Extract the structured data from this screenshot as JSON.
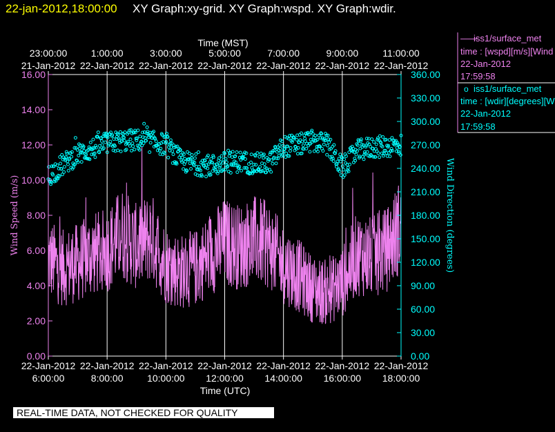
{
  "header": {
    "timestamp": "22-jan-2012,18:00:00",
    "graphs": "XY Graph:xy-grid.  XY Graph:wspd.  XY Graph:wdir."
  },
  "footer": {
    "notice": "REAL-TIME DATA, NOT CHECKED FOR QUALITY"
  },
  "legend": {
    "entries": [
      {
        "marker": "——",
        "name": "iss1/surface_met",
        "var": "time : [wspd][m/s][Wind",
        "date": "22-Jan-2012",
        "time": "17:59:58",
        "color": "#ee82ee"
      },
      {
        "marker": "o",
        "name": "iss1/surface_met",
        "var": "time : [wdir][degrees][W",
        "date": "22-Jan-2012",
        "time": "17:59:58",
        "color": "#00ffff"
      }
    ]
  },
  "colors": {
    "wspd": "#ee82ee",
    "wdir": "#00ffff",
    "axis_left": "#ee82ee",
    "axis_right": "#00ffff",
    "grid": "#ffffff",
    "text": "#ffffff",
    "header": "#ffff00"
  },
  "chart_data": {
    "type": "line",
    "title_top_axis": "Time (MST)",
    "title_bottom_axis": "Time (UTC)",
    "ylabel_left": "Wind Speed (m/s)",
    "ylabel_right": "Wind Direction (degrees)",
    "xlim_utc_hours": [
      6,
      18
    ],
    "ylim_left": [
      0,
      16
    ],
    "ylim_right": [
      0,
      360
    ],
    "bottom_ticks": [
      {
        "x": 6,
        "date": "22-Jan-2012",
        "time": "6:00:00"
      },
      {
        "x": 8,
        "date": "22-Jan-2012",
        "time": "8:00:00"
      },
      {
        "x": 10,
        "date": "22-Jan-2012",
        "time": "10:00:00"
      },
      {
        "x": 12,
        "date": "22-Jan-2012",
        "time": "12:00:00"
      },
      {
        "x": 14,
        "date": "22-Jan-2012",
        "time": "14:00:00"
      },
      {
        "x": 16,
        "date": "22-Jan-2012",
        "time": "16:00:00"
      },
      {
        "x": 18,
        "date": "22-Jan-2012",
        "time": "18:00:00"
      }
    ],
    "top_ticks": [
      {
        "x": 6,
        "time": "23:00:00",
        "date": "21-Jan-2012"
      },
      {
        "x": 8,
        "time": "1:00:00",
        "date": "22-Jan-2012"
      },
      {
        "x": 10,
        "time": "3:00:00",
        "date": "22-Jan-2012"
      },
      {
        "x": 12,
        "time": "5:00:00",
        "date": "22-Jan-2012"
      },
      {
        "x": 14,
        "time": "7:00:00",
        "date": "22-Jan-2012"
      },
      {
        "x": 16,
        "time": "9:00:00",
        "date": "22-Jan-2012"
      },
      {
        "x": 18,
        "time": "11:00:00",
        "date": "22-Jan-2012"
      }
    ],
    "left_ticks": [
      "0.00",
      "2.00",
      "4.00",
      "6.00",
      "8.00",
      "10.00",
      "12.00",
      "14.00",
      "16.00"
    ],
    "right_ticks": [
      "0.00",
      "30.00",
      "60.00",
      "90.00",
      "120.00",
      "150.00",
      "180.00",
      "210.00",
      "240.00",
      "270.00",
      "300.00",
      "330.00",
      "360.00"
    ],
    "grid": "vertical",
    "series": [
      {
        "name": "iss1/surface_met",
        "axis": "left",
        "style": "line",
        "x": [
          6.0,
          6.5,
          7.0,
          7.5,
          8.0,
          8.5,
          9.0,
          9.5,
          10.0,
          10.5,
          11.0,
          11.5,
          12.0,
          12.5,
          13.0,
          13.5,
          14.0,
          14.5,
          15.0,
          15.5,
          16.0,
          16.5,
          17.0,
          17.5,
          18.0
        ],
        "y": [
          5.5,
          5.0,
          5.3,
          5.8,
          6.0,
          7.0,
          6.2,
          6.8,
          5.2,
          4.8,
          5.0,
          5.8,
          6.5,
          6.2,
          6.6,
          6.3,
          5.2,
          4.6,
          3.8,
          3.6,
          4.2,
          5.8,
          5.6,
          6.0,
          7.5
        ]
      },
      {
        "name": "iss1/surface_met",
        "axis": "right",
        "style": "circles",
        "x": [
          6.0,
          6.5,
          7.0,
          7.5,
          8.0,
          8.5,
          9.0,
          9.5,
          10.0,
          10.5,
          11.0,
          11.5,
          12.0,
          12.5,
          13.0,
          13.5,
          14.0,
          14.5,
          15.0,
          15.5,
          16.0,
          16.5,
          17.0,
          17.5,
          18.0
        ],
        "y": [
          230,
          245,
          258,
          265,
          272,
          275,
          276,
          274,
          270,
          250,
          245,
          243,
          247,
          249,
          246,
          245,
          268,
          270,
          275,
          270,
          240,
          262,
          267,
          268,
          270
        ]
      }
    ]
  }
}
